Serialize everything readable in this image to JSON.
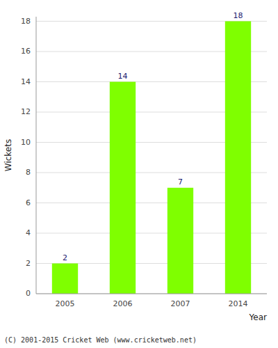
{
  "chart_data": {
    "type": "bar",
    "xlabel": "Year",
    "ylabel": "Wickets",
    "categories": [
      "2005",
      "2006",
      "2007",
      "2014"
    ],
    "values": [
      2,
      14,
      7,
      18
    ],
    "color": "#7FFF00",
    "ylim": [
      0,
      18.3
    ],
    "yticks": [
      0,
      2,
      4,
      6,
      8,
      10,
      12,
      14,
      16,
      18
    ],
    "grid": true,
    "data_labels": true,
    "annotations": [
      "(C) 2001-2015 Cricket Web (www.cricketweb.net)"
    ]
  }
}
